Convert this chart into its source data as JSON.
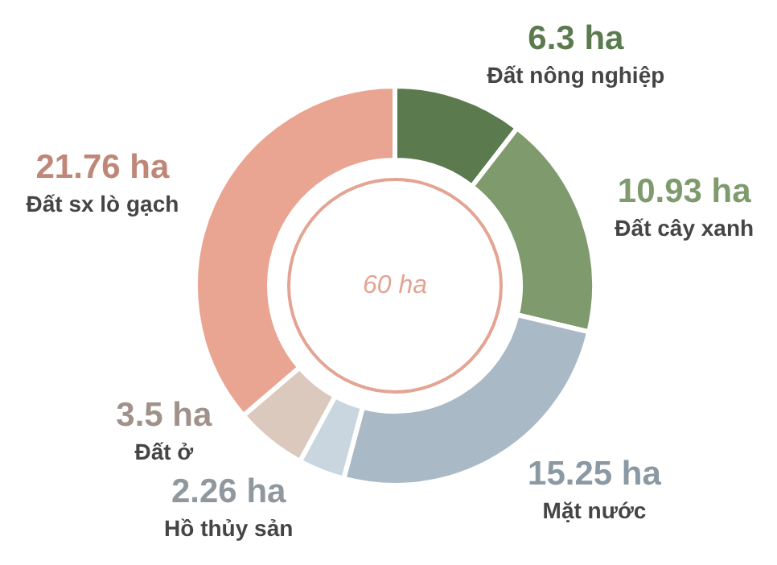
{
  "chart_data": {
    "type": "donut",
    "categories": [
      "Đất nông nghiệp",
      "Đất cây xanh",
      "Mặt nước",
      "Hồ thủy sản",
      "Đất ở",
      "Đất sx lò gạch"
    ],
    "values": [
      6.3,
      10.93,
      15.25,
      2.26,
      3.5,
      21.76
    ],
    "colors": [
      "#5b7b4f",
      "#7f9b6d",
      "#a9bac6",
      "#c9d6df",
      "#dcc9bd",
      "#e9a592"
    ],
    "value_labels": [
      "6.3 ha",
      "10.93 ha",
      "15.25 ha",
      "2.26 ha",
      "3.5 ha",
      "21.76 ha"
    ],
    "annotations": [
      "60 ha"
    ]
  }
}
